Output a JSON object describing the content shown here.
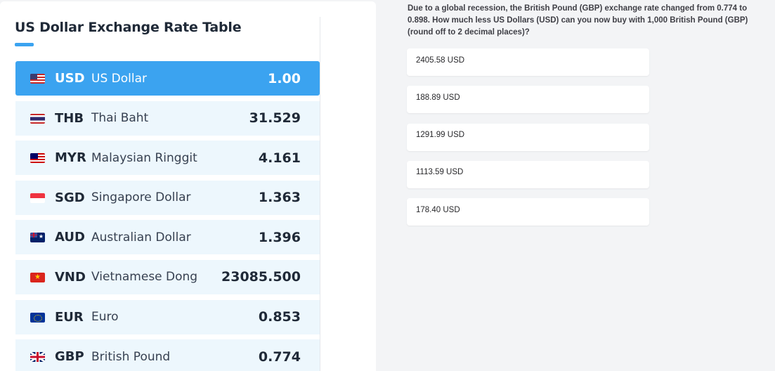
{
  "rate_table": {
    "title": "US Dollar Exchange Rate Table",
    "rows": [
      {
        "code": "USD",
        "name": "US Dollar",
        "value": "1.00",
        "flag": "flag-us-icon"
      },
      {
        "code": "THB",
        "name": "Thai Baht",
        "value": "31.529",
        "flag": "flag-th-icon"
      },
      {
        "code": "MYR",
        "name": "Malaysian Ringgit",
        "value": "4.161",
        "flag": "flag-my-icon"
      },
      {
        "code": "SGD",
        "name": "Singapore Dollar",
        "value": "1.363",
        "flag": "flag-sg-icon"
      },
      {
        "code": "AUD",
        "name": "Australian Dollar",
        "value": "1.396",
        "flag": "flag-au-icon"
      },
      {
        "code": "VND",
        "name": "Vietnamese Dong",
        "value": "23085.500",
        "flag": "flag-vn-icon"
      },
      {
        "code": "EUR",
        "name": "Euro",
        "value": "0.853",
        "flag": "flag-eu-icon"
      },
      {
        "code": "GBP",
        "name": "British Pound",
        "value": "0.774",
        "flag": "flag-gb-icon"
      }
    ]
  },
  "quiz": {
    "question": "Due to a global recession, the British Pound (GBP) exchange rate changed from 0.774 to 0.898. How much less US Dollars (USD) can you now buy with 1,000 British Pound (GBP) (round off to 2 decimal places)?",
    "options": [
      "2405.58 USD",
      "188.89 USD",
      "1291.99 USD",
      "1113.59 USD",
      "178.40 USD"
    ]
  },
  "colors": {
    "accent": "#3ba3f0",
    "row_background": "#edf7fd",
    "page_background": "#f3f4f6"
  }
}
